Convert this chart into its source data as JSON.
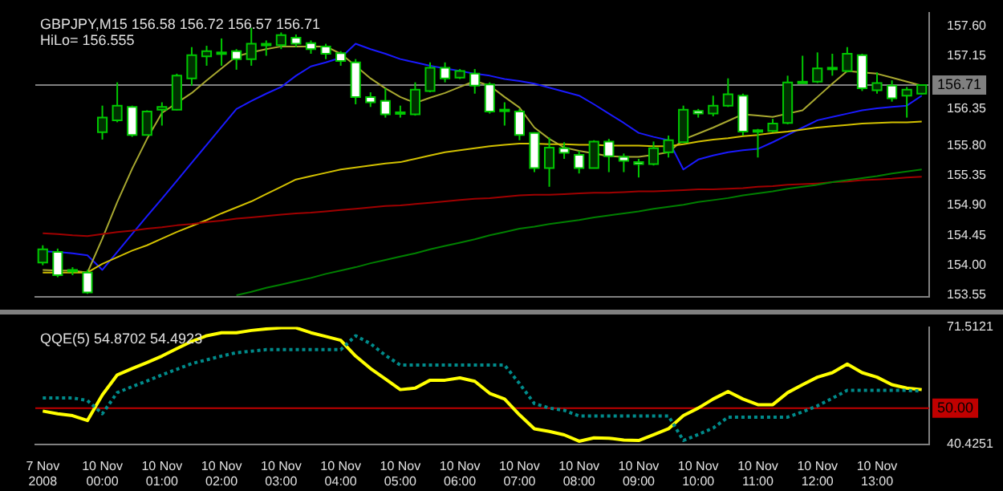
{
  "chart_data": [
    {
      "type": "candlestick",
      "title": "GBPJPY,M15 156.58 156.72 156.57 156.71",
      "subtitle": "HiLo= 156.555",
      "categories": [
        null,
        null,
        null,
        null,
        null,
        null,
        null,
        null,
        null,
        null,
        null,
        null,
        null,
        null,
        null,
        null,
        null,
        null,
        null,
        null,
        null,
        null,
        null,
        null,
        null,
        null,
        null,
        null,
        null,
        null,
        null,
        null,
        null,
        null,
        null,
        null,
        null,
        null,
        null,
        null,
        null,
        null,
        null,
        null,
        null,
        null,
        null,
        null,
        null,
        null,
        null,
        null,
        null,
        null,
        null,
        null,
        null,
        null,
        null,
        null
      ],
      "ohlc": [
        [
          154.04,
          154.3,
          154.0,
          154.24
        ],
        [
          154.2,
          154.25,
          153.82,
          153.85
        ],
        [
          153.93,
          153.97,
          153.85,
          153.93
        ],
        [
          153.89,
          153.93,
          153.57,
          153.59
        ],
        [
          156.0,
          156.4,
          155.89,
          156.22
        ],
        [
          156.18,
          156.75,
          156.15,
          156.4
        ],
        [
          156.38,
          156.4,
          155.93,
          155.96
        ],
        [
          155.96,
          156.33,
          155.95,
          156.31
        ],
        [
          156.34,
          156.45,
          156.1,
          156.38
        ],
        [
          156.34,
          156.88,
          156.33,
          156.85
        ],
        [
          156.81,
          157.28,
          156.7,
          157.16
        ],
        [
          157.14,
          157.3,
          157.0,
          157.22
        ],
        [
          157.18,
          157.41,
          157.0,
          157.2
        ],
        [
          157.22,
          157.25,
          156.94,
          157.1
        ],
        [
          157.1,
          157.57,
          157.0,
          157.33
        ],
        [
          157.32,
          157.38,
          157.15,
          157.33
        ],
        [
          157.31,
          157.5,
          157.25,
          157.46
        ],
        [
          157.42,
          157.47,
          157.28,
          157.33
        ],
        [
          157.34,
          157.38,
          157.18,
          157.25
        ],
        [
          157.29,
          157.33,
          157.1,
          157.18
        ],
        [
          157.19,
          157.22,
          157.0,
          157.07
        ],
        [
          157.05,
          157.1,
          156.42,
          156.53
        ],
        [
          156.53,
          156.6,
          156.38,
          156.45
        ],
        [
          156.47,
          156.66,
          156.22,
          156.27
        ],
        [
          156.29,
          156.4,
          156.22,
          156.3
        ],
        [
          156.27,
          156.75,
          156.25,
          156.64
        ],
        [
          156.62,
          157.05,
          156.6,
          156.97
        ],
        [
          156.97,
          157.05,
          156.75,
          156.81
        ],
        [
          156.82,
          156.95,
          156.8,
          156.92
        ],
        [
          156.88,
          156.95,
          156.58,
          156.7
        ],
        [
          156.72,
          156.75,
          156.28,
          156.31
        ],
        [
          156.33,
          156.45,
          156.1,
          156.34
        ],
        [
          156.31,
          156.35,
          155.88,
          155.96
        ],
        [
          155.99,
          156.0,
          155.4,
          155.46
        ],
        [
          155.46,
          155.92,
          155.18,
          155.77
        ],
        [
          155.76,
          155.85,
          155.6,
          155.69
        ],
        [
          155.66,
          155.72,
          155.38,
          155.46
        ],
        [
          155.46,
          155.88,
          155.46,
          155.86
        ],
        [
          155.86,
          155.9,
          155.4,
          155.64
        ],
        [
          155.63,
          155.68,
          155.4,
          155.57
        ],
        [
          155.55,
          155.6,
          155.32,
          155.52
        ],
        [
          155.52,
          155.86,
          155.5,
          155.76
        ],
        [
          155.7,
          155.95,
          155.62,
          155.88
        ],
        [
          155.85,
          156.4,
          155.84,
          156.34
        ],
        [
          156.32,
          156.35,
          156.22,
          156.28
        ],
        [
          156.28,
          156.55,
          156.24,
          156.4
        ],
        [
          156.4,
          156.81,
          156.38,
          156.57
        ],
        [
          156.55,
          156.58,
          155.95,
          156.01
        ],
        [
          156.02,
          156.05,
          155.62,
          156.03
        ],
        [
          156.02,
          156.2,
          156.0,
          156.13
        ],
        [
          156.14,
          156.85,
          156.12,
          156.75
        ],
        [
          156.75,
          157.15,
          156.74,
          156.76
        ],
        [
          156.76,
          157.2,
          156.74,
          156.96
        ],
        [
          156.97,
          157.18,
          156.85,
          156.95
        ],
        [
          156.92,
          157.28,
          156.9,
          157.18
        ],
        [
          157.16,
          157.18,
          156.62,
          156.66
        ],
        [
          156.63,
          156.9,
          156.58,
          156.74
        ],
        [
          156.7,
          156.78,
          156.46,
          156.51
        ],
        [
          156.55,
          156.68,
          156.22,
          156.64
        ],
        [
          156.58,
          156.72,
          156.57,
          156.71
        ]
      ],
      "series": [
        {
          "type": "line",
          "color": "#008000",
          "values": [
            null,
            null,
            null,
            null,
            null,
            null,
            null,
            null,
            null,
            null,
            null,
            null,
            null,
            153.55,
            153.6,
            153.66,
            153.71,
            153.76,
            153.81,
            153.87,
            153.92,
            153.97,
            154.03,
            154.08,
            154.13,
            154.18,
            154.24,
            154.29,
            154.34,
            154.39,
            154.45,
            154.5,
            154.55,
            154.58,
            154.62,
            154.65,
            154.68,
            154.72,
            154.75,
            154.78,
            154.81,
            154.85,
            154.88,
            154.91,
            154.95,
            154.98,
            155.01,
            155.05,
            155.08,
            155.11,
            155.15,
            155.18,
            155.21,
            155.25,
            155.28,
            155.31,
            155.34,
            155.38,
            155.41,
            155.44
          ]
        },
        {
          "type": "line",
          "color": "#a00000",
          "values": [
            154.48,
            154.47,
            154.45,
            154.44,
            154.47,
            154.5,
            154.52,
            154.55,
            154.57,
            154.6,
            154.62,
            154.65,
            154.67,
            154.7,
            154.72,
            154.74,
            154.76,
            154.78,
            154.79,
            154.81,
            154.83,
            154.85,
            154.87,
            154.89,
            154.9,
            154.92,
            154.94,
            154.96,
            154.98,
            155.0,
            155.01,
            155.03,
            155.05,
            155.06,
            155.06,
            155.07,
            155.08,
            155.09,
            155.09,
            155.1,
            155.11,
            155.11,
            155.12,
            155.13,
            155.14,
            155.14,
            155.15,
            155.16,
            155.18,
            155.19,
            155.21,
            155.22,
            155.23,
            155.25,
            155.26,
            155.28,
            155.29,
            155.3,
            155.32,
            155.33
          ]
        },
        {
          "type": "line",
          "color": "#d2c000",
          "values": [
            153.89,
            153.89,
            153.89,
            153.89,
            154.02,
            154.12,
            154.22,
            154.3,
            154.4,
            154.5,
            154.59,
            154.68,
            154.78,
            154.87,
            154.96,
            155.07,
            155.18,
            155.29,
            155.34,
            155.39,
            155.44,
            155.47,
            155.5,
            155.53,
            155.55,
            155.6,
            155.65,
            155.7,
            155.73,
            155.76,
            155.79,
            155.81,
            155.83,
            155.83,
            155.82,
            155.82,
            155.81,
            155.81,
            155.8,
            155.8,
            155.8,
            155.79,
            155.79,
            155.82,
            155.86,
            155.89,
            155.91,
            155.94,
            155.96,
            155.99,
            156.01,
            156.04,
            156.07,
            156.09,
            156.11,
            156.13,
            156.14,
            156.15,
            156.15,
            156.16
          ]
        },
        {
          "type": "line",
          "color": "#a8a830",
          "values": [
            153.93,
            153.92,
            153.92,
            153.89,
            154.4,
            154.95,
            155.45,
            155.9,
            156.29,
            156.44,
            156.59,
            156.78,
            156.96,
            157.14,
            157.2,
            157.25,
            157.29,
            157.29,
            157.29,
            157.29,
            157.18,
            157.0,
            156.81,
            156.66,
            156.53,
            156.44,
            156.52,
            156.59,
            156.68,
            156.77,
            156.7,
            156.53,
            156.37,
            156.07,
            155.9,
            155.77,
            155.72,
            155.68,
            155.64,
            155.63,
            155.63,
            155.66,
            155.7,
            155.89,
            155.98,
            156.07,
            156.17,
            156.27,
            156.25,
            156.23,
            156.28,
            156.33,
            156.53,
            156.73,
            156.92,
            156.9,
            156.88,
            156.82,
            156.76,
            156.7
          ]
        },
        {
          "type": "line",
          "color": "#1a1aff",
          "values": [
            154.21,
            154.2,
            154.18,
            154.15,
            153.93,
            154.2,
            154.47,
            154.74,
            155.0,
            155.27,
            155.54,
            155.81,
            156.08,
            156.35,
            156.47,
            156.58,
            156.68,
            156.85,
            156.99,
            157.05,
            157.12,
            157.33,
            157.25,
            157.18,
            157.1,
            157.05,
            157.0,
            156.96,
            156.92,
            156.88,
            156.85,
            156.8,
            156.77,
            156.73,
            156.67,
            156.61,
            156.55,
            156.42,
            156.28,
            156.14,
            155.99,
            155.93,
            155.88,
            155.44,
            155.59,
            155.65,
            155.7,
            155.73,
            155.75,
            155.85,
            155.96,
            156.07,
            156.18,
            156.23,
            156.28,
            156.33,
            156.36,
            156.38,
            156.4,
            156.55
          ]
        }
      ],
      "ylim": [
        153.52,
        157.8
      ],
      "yticks": [
        {
          "value": 153.55,
          "label": "153.55"
        },
        {
          "value": 154,
          "label": "154.00"
        },
        {
          "value": 154.45,
          "label": "154.45"
        },
        {
          "value": 154.9,
          "label": "154.90"
        },
        {
          "value": 155.35,
          "label": "155.35"
        },
        {
          "value": 155.8,
          "label": "155.80"
        },
        {
          "value": 156.35,
          "label": "156.35"
        },
        {
          "value": 157.15,
          "label": "157.15"
        },
        {
          "value": 157.6,
          "label": "157.60"
        }
      ],
      "ref_lines": [
        {
          "axis": "y",
          "value": 156.71,
          "label": "156.71",
          "color": "#808080"
        }
      ],
      "tick_labels": "y",
      "grid": false,
      "legend": false,
      "marker": "none"
    },
    {
      "type": "line",
      "title": "QQE(5) 54.8702 54.4923",
      "categories": [
        "7 Nov 2008",
        null,
        null,
        null,
        "10 Nov 00:00",
        null,
        null,
        null,
        "10 Nov 01:00",
        null,
        null,
        null,
        "10 Nov 02:00",
        null,
        null,
        null,
        "10 Nov 03:00",
        null,
        null,
        null,
        "10 Nov 04:00",
        null,
        null,
        null,
        "10 Nov 05:00",
        null,
        null,
        null,
        "10 Nov 06:00",
        null,
        null,
        null,
        "10 Nov 07:00",
        null,
        null,
        null,
        "10 Nov 08:00",
        null,
        null,
        null,
        "10 Nov 09:00",
        null,
        null,
        null,
        "10 Nov 10:00",
        null,
        null,
        null,
        "10 Nov 11:00",
        null,
        null,
        null,
        "10 Nov 12:00",
        null,
        null,
        null,
        "10 Nov 13:00",
        null,
        null,
        null
      ],
      "series": [
        {
          "color": "#008b8b",
          "line_style": "dotted",
          "values": [
            52.7,
            52.7,
            52.7,
            52.0,
            48.5,
            54.1,
            55.7,
            57.2,
            58.8,
            60.3,
            61.8,
            62.8,
            63.8,
            64.7,
            65.1,
            65.5,
            65.5,
            65.5,
            65.5,
            65.5,
            65.5,
            69.2,
            67.1,
            64.0,
            61.4,
            61.4,
            61.4,
            61.4,
            61.4,
            61.4,
            61.4,
            61.4,
            56.5,
            51.2,
            50.0,
            49.4,
            47.9,
            47.9,
            47.9,
            47.9,
            47.9,
            47.9,
            47.9,
            41.4,
            43.0,
            44.7,
            47.6,
            47.6,
            47.6,
            47.6,
            47.6,
            49.0,
            50.6,
            52.6,
            54.7,
            54.7,
            54.7,
            54.7,
            54.7,
            54.5
          ]
        },
        {
          "color": "#ffff00",
          "line_style": "solid",
          "values": [
            49.2,
            48.5,
            48.0,
            46.7,
            53.5,
            58.8,
            60.5,
            62.1,
            63.8,
            65.8,
            67.7,
            69.2,
            70.0,
            70.0,
            70.6,
            71.0,
            71.3,
            71.3,
            70.0,
            69.0,
            68.0,
            63.8,
            60.5,
            57.7,
            54.9,
            55.3,
            57.4,
            57.4,
            58.0,
            57.1,
            53.9,
            52.4,
            48.2,
            44.5,
            43.8,
            42.9,
            41.2,
            42.1,
            42.0,
            41.5,
            41.4,
            42.9,
            44.5,
            48.0,
            50.0,
            52.4,
            54.4,
            52.4,
            50.9,
            50.9,
            54.1,
            56.2,
            58.2,
            59.4,
            61.7,
            59.4,
            58.2,
            56.2,
            55.3,
            54.9
          ]
        }
      ],
      "ylim": [
        40.4251,
        71.5121
      ],
      "yticks": [
        40.4251,
        71.5121
      ],
      "ref_lines": [
        {
          "axis": "y",
          "value": 50,
          "label": "50.00",
          "color": "#c00000"
        }
      ],
      "grid": false,
      "legend": false,
      "marker": "none"
    }
  ]
}
